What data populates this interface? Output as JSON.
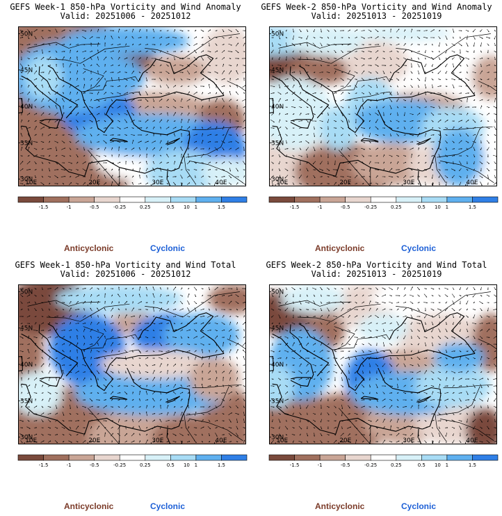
{
  "colors": {
    "anticyclonic_strong": "#7a4a3c",
    "anticyclonic_mid": "#a0705e",
    "anticyclonic_weak": "#c9a596",
    "anticyclonic_faint": "#e8d6cf",
    "neutral": "#ffffff",
    "cyclonic_faint": "#d8f1f8",
    "cyclonic_weak": "#a8dcf5",
    "cyclonic_mid": "#5fb0ef",
    "cyclonic_strong": "#2f7fe6",
    "cyclonic_deep": "#1d62d8",
    "anticyclonic_label": "#7a3a28",
    "cyclonic_label": "#1c5fd6"
  },
  "colorbar": {
    "tick_labels": [
      "-1.5",
      "-1",
      "-0.5",
      "-0.25",
      "0.25",
      "0.5",
      "1",
      "1.5"
    ],
    "scale_label": "10"
  },
  "axes": {
    "lat_labels": [
      "50N",
      "45N",
      "40N",
      "35N",
      "30N"
    ],
    "lon_labels": [
      "10E",
      "20E",
      "30E",
      "40E"
    ]
  },
  "legend": {
    "anticyclonic": "Anticyclonic",
    "cyclonic": "Cyclonic"
  },
  "panels": [
    {
      "title": "GEFS Week-1 850-hPa Vorticity and Wind Anomaly",
      "valid": "Valid: 20251006 - 20251012"
    },
    {
      "title": "GEFS Week-2 850-hPa Vorticity and Wind Anomaly",
      "valid": "Valid: 20251013 - 20251019"
    },
    {
      "title": "GEFS Week-1 850-hPa Vorticity and Wind Total",
      "valid": "Valid: 20251006 - 20251012"
    },
    {
      "title": "GEFS Week-2 850-hPa Vorticity and Wind Total",
      "valid": "Valid: 20251013 - 20251019"
    }
  ],
  "chart_data": [
    {
      "type": "heatmap",
      "title": "GEFS Week-1 850-hPa Vorticity and Wind Anomaly",
      "subtitle": "Valid: 20251006 - 20251012",
      "x_range": [
        9,
        45
      ],
      "y_range": [
        29,
        51
      ],
      "levels": [
        -1.5,
        -1,
        -0.5,
        -0.25,
        0.25,
        0.5,
        1,
        1.5
      ]
    },
    {
      "type": "heatmap",
      "title": "GEFS Week-2 850-hPa Vorticity and Wind Anomaly",
      "subtitle": "Valid: 20251013 - 20251019",
      "x_range": [
        9,
        45
      ],
      "y_range": [
        29,
        51
      ],
      "levels": [
        -1.5,
        -1,
        -0.5,
        -0.25,
        0.25,
        0.5,
        1,
        1.5
      ]
    },
    {
      "type": "heatmap",
      "title": "GEFS Week-1 850-hPa Vorticity and Wind Total",
      "subtitle": "Valid: 20251006 - 20251012",
      "x_range": [
        9,
        45
      ],
      "y_range": [
        29,
        51
      ],
      "levels": [
        -1.5,
        -1,
        -0.5,
        -0.25,
        0.25,
        0.5,
        1,
        1.5
      ]
    },
    {
      "type": "heatmap",
      "title": "GEFS Week-2 850-hPa Vorticity and Wind Total",
      "subtitle": "Valid: 20251013 - 20251019",
      "x_range": [
        9,
        45
      ],
      "y_range": [
        29,
        51
      ],
      "levels": [
        -1.5,
        -1,
        -0.5,
        -0.25,
        0.25,
        0.5,
        1,
        1.5
      ]
    }
  ]
}
